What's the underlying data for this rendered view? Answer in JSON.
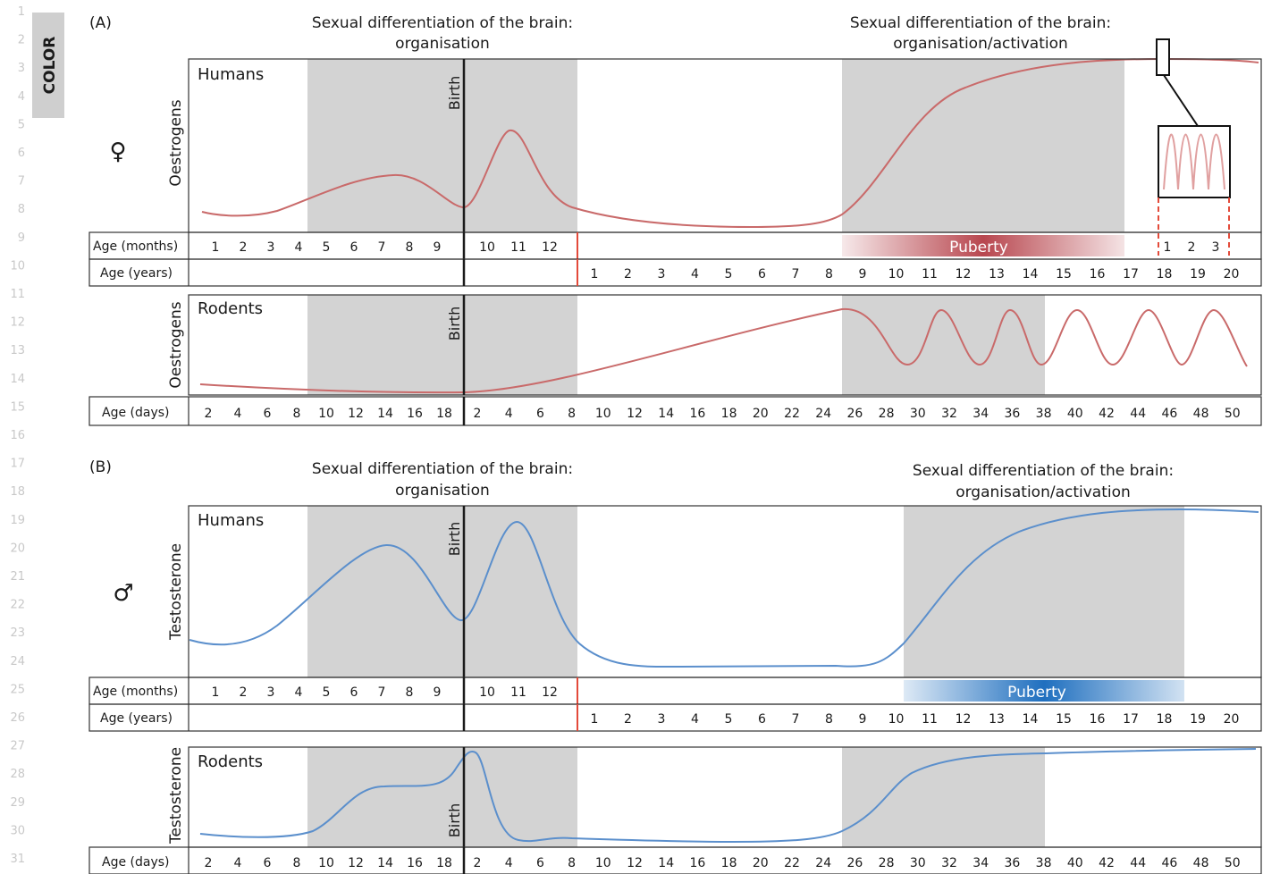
{
  "margin_tag": "COLOR",
  "line_numbers": [
    "1",
    "2",
    "3",
    "4",
    "5",
    "6",
    "7",
    "8",
    "9",
    "10",
    "11",
    "12",
    "13",
    "14",
    "15",
    "16",
    "17",
    "18",
    "19",
    "20",
    "21",
    "22",
    "23",
    "24",
    "25",
    "26",
    "27",
    "28",
    "29",
    "30",
    "31"
  ],
  "colors": {
    "female_curve": "#c96a6a",
    "male_curve": "#5b8fcc",
    "shade": "#d3d3d3",
    "puberty_female": "#b8474f",
    "puberty_male": "#1f6fbf",
    "birth_marker": "#e34a3a"
  },
  "panel_a": {
    "label": "(A)",
    "title_left_line1": "Sexual differentiation of the brain:",
    "title_left_line2": "organisation",
    "title_right_line1": "Sexual differentiation of the brain:",
    "title_right_line2": "organisation/activation",
    "symbol": "♀",
    "humans": {
      "species": "Humans",
      "ylabel": "Oestrogens",
      "birth_label": "Birth",
      "inset_icon": "oscillation-inset-icon"
    },
    "months_row": {
      "label": "Age (months)",
      "prenatal_ticks": [
        "1",
        "2",
        "3",
        "4",
        "5",
        "6",
        "7",
        "8",
        "9"
      ],
      "postnatal_ticks": [
        "10",
        "11",
        "12"
      ],
      "inset_ticks": [
        "1",
        "2",
        "3"
      ]
    },
    "years_row": {
      "label": "Age (years)",
      "ticks": [
        "1",
        "2",
        "3",
        "4",
        "5",
        "6",
        "7",
        "8",
        "9",
        "10",
        "11",
        "12",
        "13",
        "14",
        "15",
        "16",
        "17",
        "18",
        "19",
        "20"
      ]
    },
    "puberty_label": "Puberty",
    "rodents": {
      "species": "Rodents",
      "ylabel": "Oestrogens",
      "birth_label": "Birth"
    },
    "days_row": {
      "label": "Age (days)",
      "prenatal_ticks": [
        "2",
        "4",
        "6",
        "8",
        "10",
        "12",
        "14",
        "16",
        "18"
      ],
      "postnatal_ticks": [
        "2",
        "4",
        "6",
        "8",
        "10",
        "12",
        "14",
        "16",
        "18",
        "20",
        "22",
        "24",
        "26",
        "28",
        "30",
        "32",
        "34",
        "36",
        "38",
        "40",
        "42",
        "44",
        "46",
        "48",
        "50"
      ]
    }
  },
  "panel_b": {
    "label": "(B)",
    "title_left_line1": "Sexual differentiation of the brain:",
    "title_left_line2": "organisation",
    "title_right_line1": "Sexual differentiation of the brain:",
    "title_right_line2": "organisation/activation",
    "symbol": "♂",
    "humans": {
      "species": "Humans",
      "ylabel": "Testosterone",
      "birth_label": "Birth"
    },
    "months_row": {
      "label": "Age (months)",
      "prenatal_ticks": [
        "1",
        "2",
        "3",
        "4",
        "5",
        "6",
        "7",
        "8",
        "9"
      ],
      "postnatal_ticks": [
        "10",
        "11",
        "12"
      ]
    },
    "years_row": {
      "label": "Age (years)",
      "ticks": [
        "1",
        "2",
        "3",
        "4",
        "5",
        "6",
        "7",
        "8",
        "9",
        "10",
        "11",
        "12",
        "13",
        "14",
        "15",
        "16",
        "17",
        "18",
        "19",
        "20"
      ]
    },
    "puberty_label": "Puberty",
    "rodents": {
      "species": "Rodents",
      "ylabel": "Testosterone",
      "birth_label": "Birth"
    },
    "days_row": {
      "label": "Age (days)",
      "prenatal_ticks": [
        "2",
        "4",
        "6",
        "8",
        "10",
        "12",
        "14",
        "16",
        "18"
      ],
      "postnatal_ticks": [
        "2",
        "4",
        "6",
        "8",
        "10",
        "12",
        "14",
        "16",
        "18",
        "20",
        "22",
        "24",
        "26",
        "28",
        "30",
        "32",
        "34",
        "36",
        "38",
        "40",
        "42",
        "44",
        "46",
        "48",
        "50"
      ]
    }
  }
}
